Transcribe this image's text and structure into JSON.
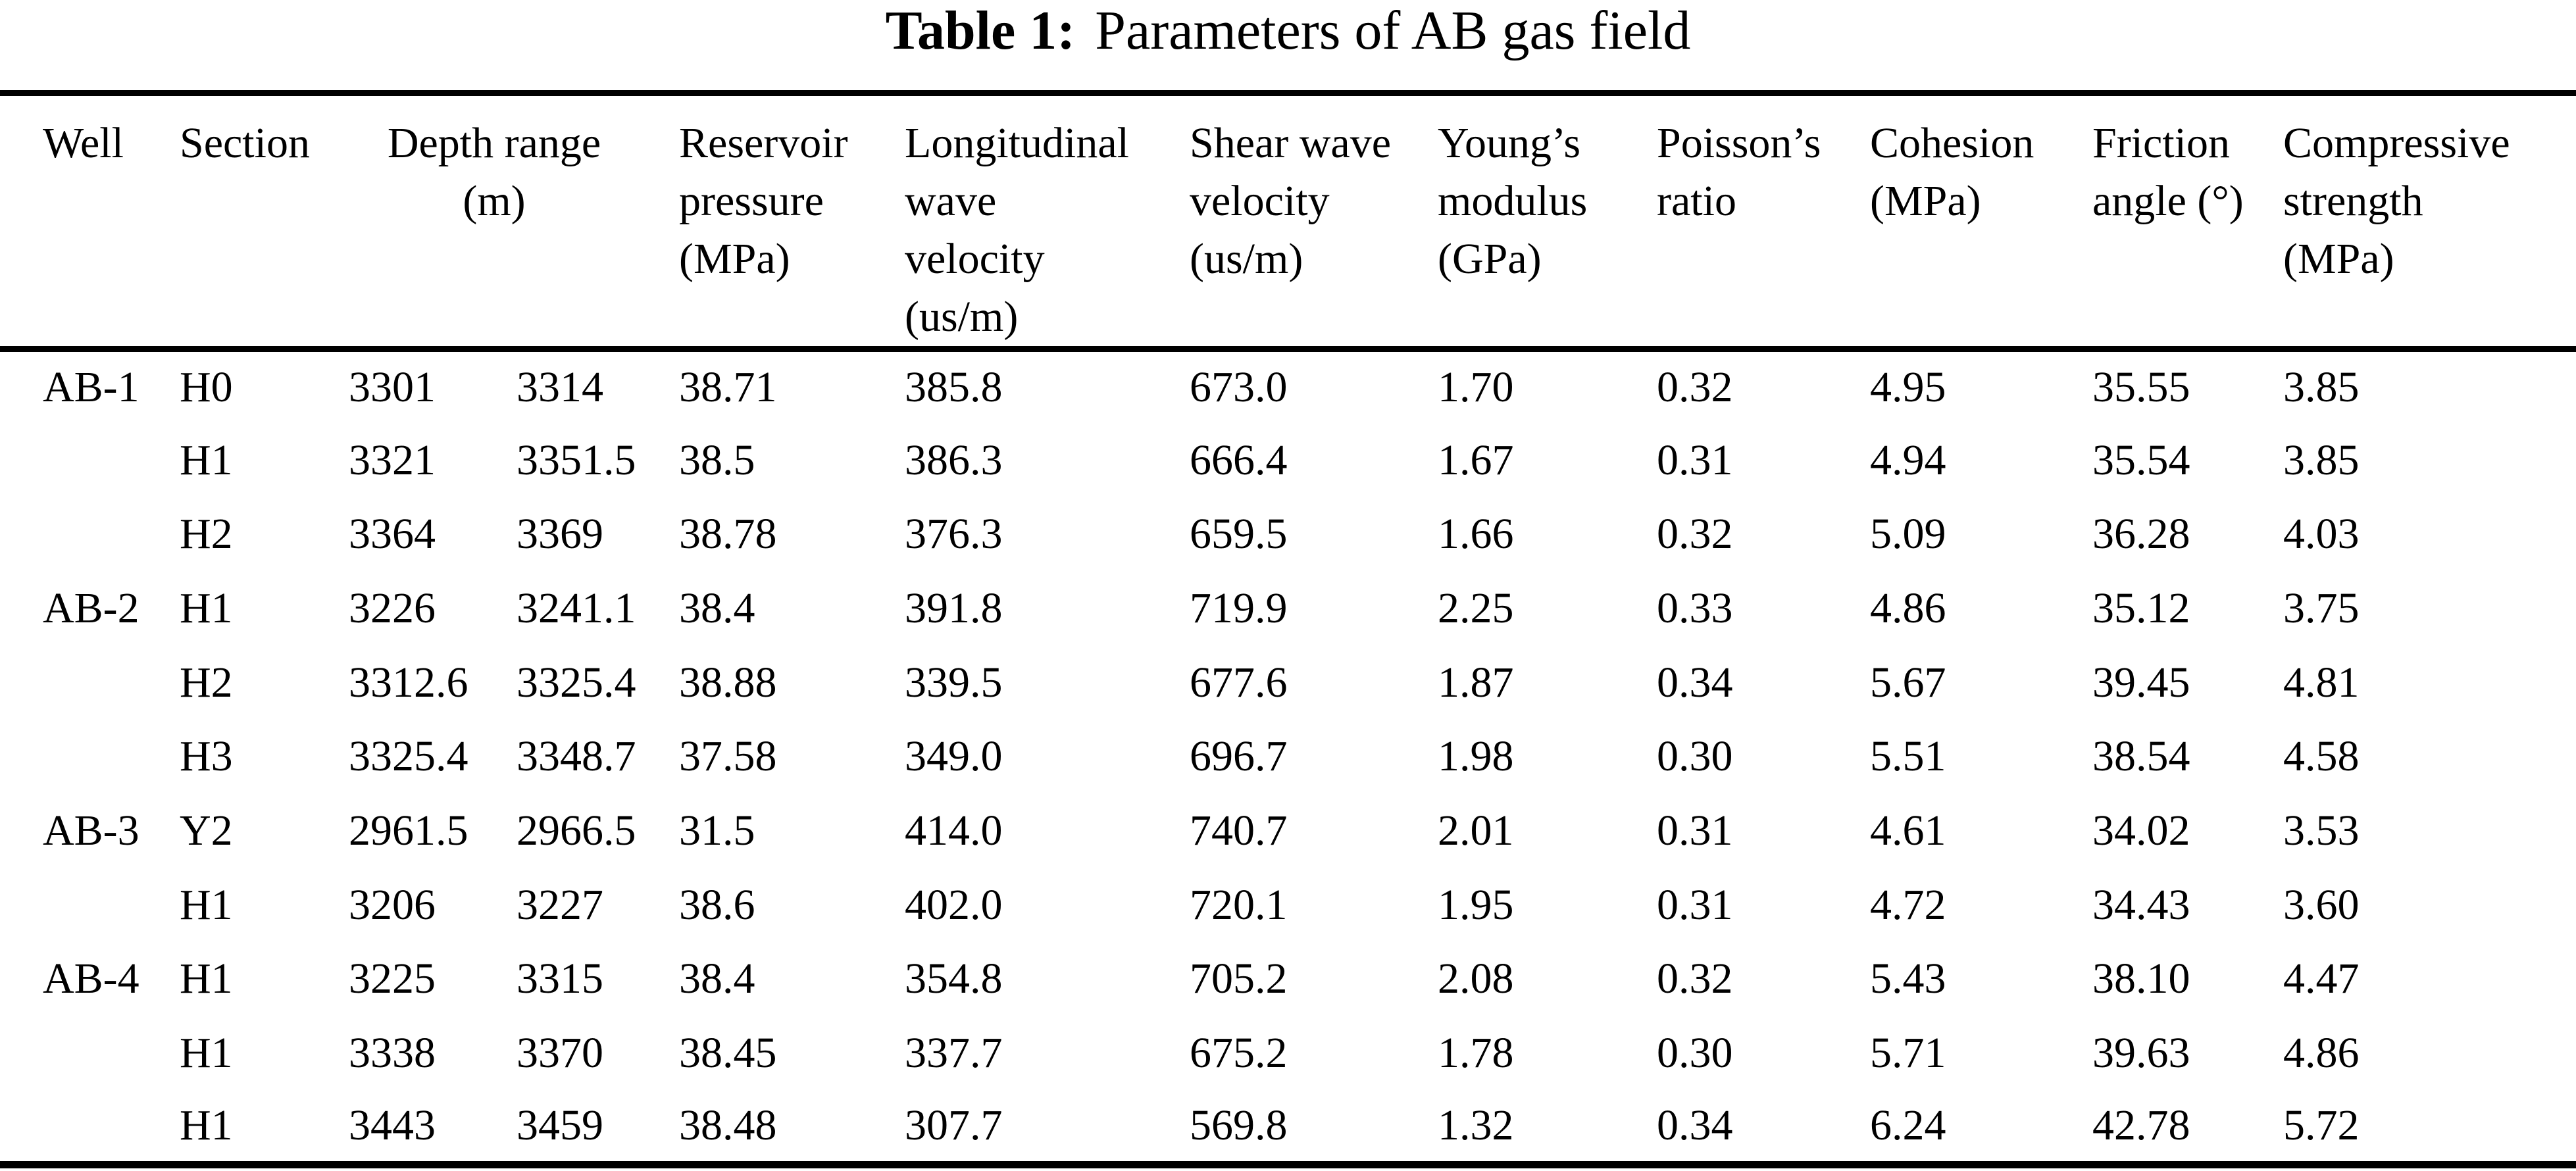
{
  "title": {
    "label": "Table 1:",
    "text": "Parameters of AB gas field"
  },
  "table": {
    "header": {
      "well": "Well",
      "section": "Section",
      "depth_range": "Depth range\n(m)",
      "reservoir_pressure": "Reservoir\npressure\n(MPa)",
      "longitudinal_wave_velocity": "Longitudinal\nwave\nvelocity\n(us/m)",
      "shear_wave_velocity": "Shear wave\nvelocity\n(us/m)",
      "youngs_modulus": "Young’s\nmodulus\n(GPa)",
      "poissons_ratio": "Poisson’s\nratio",
      "cohesion": "Cohesion\n(MPa)",
      "friction_angle": "Friction\nangle (°)",
      "compressive_strength": "Compressive\nstrength\n(MPa)"
    },
    "cell_keys": [
      "well",
      "section",
      "depth_from",
      "depth_to",
      "pressure",
      "p_wave_velocity",
      "s_wave_velocity",
      "youngs_modulus",
      "poissons_ratio",
      "cohesion",
      "friction_angle",
      "compressive_strength"
    ],
    "rows": [
      {
        "well": "AB-1",
        "section": "H0",
        "depth_from": "3301",
        "depth_to": "3314",
        "pressure": "38.71",
        "p_wave_velocity": "385.8",
        "s_wave_velocity": "673.0",
        "youngs_modulus": "1.70",
        "poissons_ratio": "0.32",
        "cohesion": "4.95",
        "friction_angle": "35.55",
        "compressive_strength": "3.85"
      },
      {
        "well": "",
        "section": "H1",
        "depth_from": "3321",
        "depth_to": "3351.5",
        "pressure": "38.5",
        "p_wave_velocity": "386.3",
        "s_wave_velocity": "666.4",
        "youngs_modulus": "1.67",
        "poissons_ratio": "0.31",
        "cohesion": "4.94",
        "friction_angle": "35.54",
        "compressive_strength": "3.85"
      },
      {
        "well": "",
        "section": "H2",
        "depth_from": "3364",
        "depth_to": "3369",
        "pressure": "38.78",
        "p_wave_velocity": "376.3",
        "s_wave_velocity": "659.5",
        "youngs_modulus": "1.66",
        "poissons_ratio": "0.32",
        "cohesion": "5.09",
        "friction_angle": "36.28",
        "compressive_strength": "4.03"
      },
      {
        "well": "AB-2",
        "section": "H1",
        "depth_from": "3226",
        "depth_to": "3241.1",
        "pressure": "38.4",
        "p_wave_velocity": "391.8",
        "s_wave_velocity": "719.9",
        "youngs_modulus": "2.25",
        "poissons_ratio": "0.33",
        "cohesion": "4.86",
        "friction_angle": "35.12",
        "compressive_strength": "3.75"
      },
      {
        "well": "",
        "section": "H2",
        "depth_from": "3312.6",
        "depth_to": "3325.4",
        "pressure": "38.88",
        "p_wave_velocity": "339.5",
        "s_wave_velocity": "677.6",
        "youngs_modulus": "1.87",
        "poissons_ratio": "0.34",
        "cohesion": "5.67",
        "friction_angle": "39.45",
        "compressive_strength": "4.81"
      },
      {
        "well": "",
        "section": "H3",
        "depth_from": "3325.4",
        "depth_to": "3348.7",
        "pressure": "37.58",
        "p_wave_velocity": "349.0",
        "s_wave_velocity": "696.7",
        "youngs_modulus": "1.98",
        "poissons_ratio": "0.30",
        "cohesion": "5.51",
        "friction_angle": "38.54",
        "compressive_strength": "4.58"
      },
      {
        "well": "AB-3",
        "section": "Y2",
        "depth_from": "2961.5",
        "depth_to": "2966.5",
        "pressure": "31.5",
        "p_wave_velocity": "414.0",
        "s_wave_velocity": "740.7",
        "youngs_modulus": "2.01",
        "poissons_ratio": "0.31",
        "cohesion": "4.61",
        "friction_angle": "34.02",
        "compressive_strength": "3.53"
      },
      {
        "well": "",
        "section": "H1",
        "depth_from": "3206",
        "depth_to": "3227",
        "pressure": "38.6",
        "p_wave_velocity": "402.0",
        "s_wave_velocity": "720.1",
        "youngs_modulus": "1.95",
        "poissons_ratio": "0.31",
        "cohesion": "4.72",
        "friction_angle": "34.43",
        "compressive_strength": "3.60"
      },
      {
        "well": "AB-4",
        "section": "H1",
        "depth_from": "3225",
        "depth_to": "3315",
        "pressure": "38.4",
        "p_wave_velocity": "354.8",
        "s_wave_velocity": "705.2",
        "youngs_modulus": "2.08",
        "poissons_ratio": "0.32",
        "cohesion": "5.43",
        "friction_angle": "38.10",
        "compressive_strength": "4.47"
      },
      {
        "well": "",
        "section": "H1",
        "depth_from": "3338",
        "depth_to": "3370",
        "pressure": "38.45",
        "p_wave_velocity": "337.7",
        "s_wave_velocity": "675.2",
        "youngs_modulus": "1.78",
        "poissons_ratio": "0.30",
        "cohesion": "5.71",
        "friction_angle": "39.63",
        "compressive_strength": "4.86"
      },
      {
        "well": "",
        "section": "H1",
        "depth_from": "3443",
        "depth_to": "3459",
        "pressure": "38.48",
        "p_wave_velocity": "307.7",
        "s_wave_velocity": "569.8",
        "youngs_modulus": "1.32",
        "poissons_ratio": "0.34",
        "cohesion": "6.24",
        "friction_angle": "42.78",
        "compressive_strength": "5.72"
      }
    ]
  }
}
